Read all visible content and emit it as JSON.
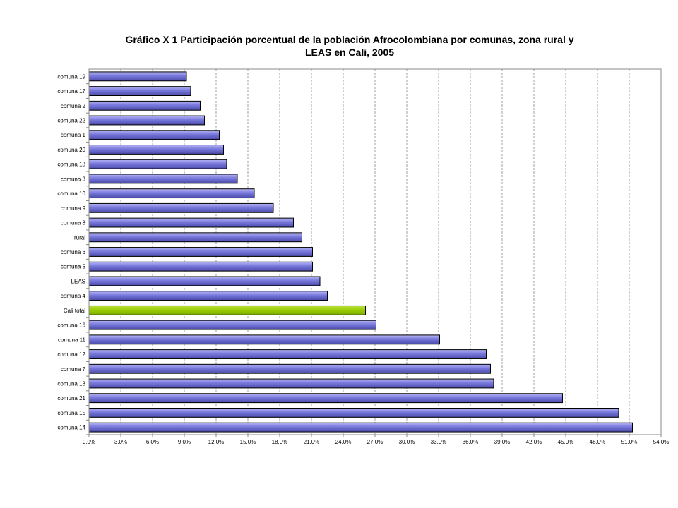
{
  "chart_data": {
    "type": "bar",
    "orientation": "horizontal",
    "title_lines": [
      "Gráfico X 1 Participación  porcentual  de la población  Afrocolombiana  por comunas,  zona rural y",
      "LEAS en Cali, 2005"
    ],
    "xlabel": "",
    "ylabel": "",
    "xlim": [
      0,
      54
    ],
    "x_ticks": [
      "0,0%",
      "3,0%",
      "6,0%",
      "9,0%",
      "12,0%",
      "15,0%",
      "18,0%",
      "21,0%",
      "24,0%",
      "27,0%",
      "30,0%",
      "33,0%",
      "36,0%",
      "39,0%",
      "42,0%",
      "45,0%",
      "48,0%",
      "51,0%",
      "54,0%"
    ],
    "x_tick_values": [
      0,
      3,
      6,
      9,
      12,
      15,
      18,
      21,
      24,
      27,
      30,
      33,
      36,
      39,
      42,
      45,
      48,
      51,
      54
    ],
    "grid": "vertical dashed",
    "legend": "none",
    "categories": [
      "comuna 19",
      "comuna 17",
      "comuna 2",
      "comuna 22",
      "comuna 1",
      "comuna 20",
      "comuna 18",
      "comuna 3",
      "comuna 10",
      "comuna 9",
      "comuna 8",
      "rural",
      "comuna 6",
      "comuna 5",
      "LEAS",
      "comuna 4",
      "Cali total",
      "comuna 16",
      "comuna 11",
      "comuna 12",
      "comuna 7",
      "comuna 13",
      "comuna 21",
      "comuna 15",
      "comuna 14"
    ],
    "values": [
      9.2,
      9.6,
      10.5,
      10.9,
      12.3,
      12.7,
      13.0,
      14.0,
      15.6,
      17.4,
      19.3,
      20.1,
      21.1,
      21.1,
      21.8,
      22.5,
      26.1,
      27.1,
      33.1,
      37.5,
      37.9,
      38.2,
      44.7,
      50.0,
      51.3
    ],
    "highlight_category": "Cali total",
    "colors": {
      "bar": "#7b7bdb",
      "bar_highlight": "#99cc00",
      "bar_outline": "#000000",
      "grid": "#888888",
      "plot_border": "#888888"
    }
  }
}
